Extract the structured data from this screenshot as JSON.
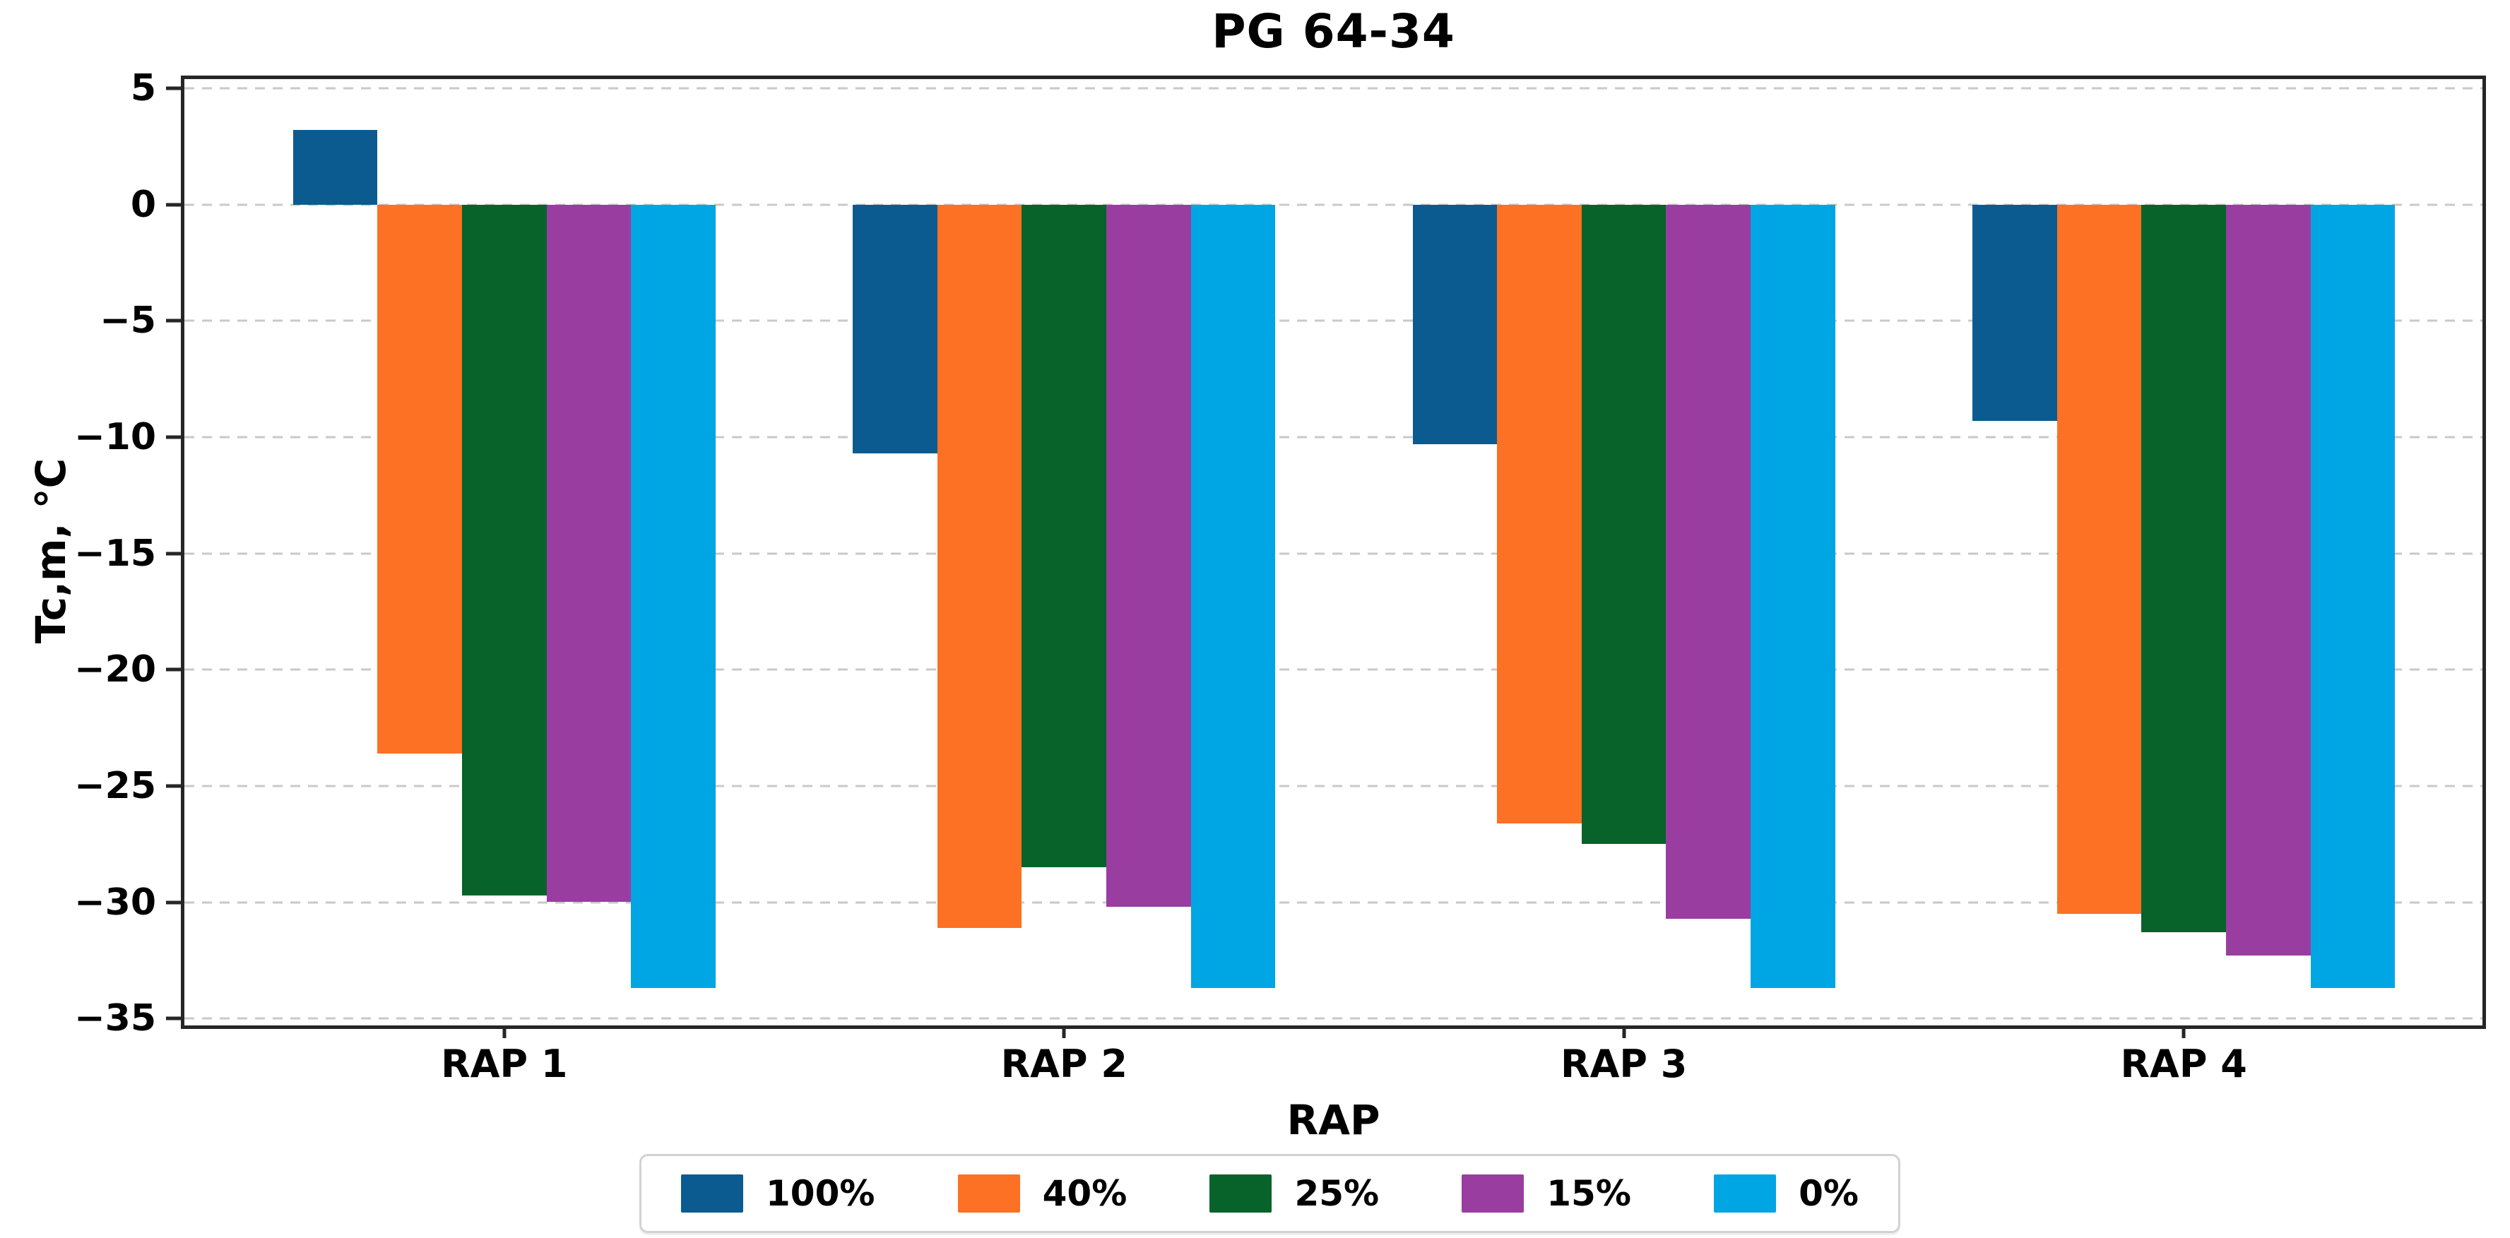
{
  "chart_data": {
    "type": "bar",
    "title": "PG 64-34",
    "xlabel": "RAP",
    "ylabel": "Tc,m, °C",
    "categories": [
      "RAP 1",
      "RAP 2",
      "RAP 3",
      "RAP 4"
    ],
    "series": [
      {
        "name": "100%",
        "color": "#0b5b90",
        "values": [
          3.2,
          -10.7,
          -10.3,
          -9.3
        ]
      },
      {
        "name": "40%",
        "color": "#fc7124",
        "values": [
          -23.6,
          -31.1,
          -26.6,
          -30.5
        ]
      },
      {
        "name": "25%",
        "color": "#076329",
        "values": [
          -29.7,
          -28.5,
          -27.5,
          -31.3
        ]
      },
      {
        "name": "15%",
        "color": "#9a3da1",
        "values": [
          -30.0,
          -30.2,
          -30.7,
          -32.3
        ]
      },
      {
        "name": "0%",
        "color": "#00a5e3",
        "values": [
          -33.7,
          -33.7,
          -33.7,
          -33.7
        ]
      }
    ],
    "ylim": [
      -35.3,
      5.4
    ],
    "yticks": [
      5,
      0,
      -5,
      -10,
      -15,
      -20,
      -25,
      -30,
      -35
    ],
    "grid": true,
    "grid_style": "dashed",
    "legend_position": "bottom-center",
    "axis_color": "#262626",
    "gridline_color": "#c9c9c9"
  }
}
